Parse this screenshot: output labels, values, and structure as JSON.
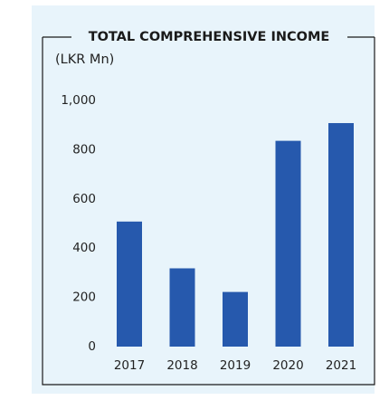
{
  "chart_data": {
    "type": "bar",
    "title": "TOTAL COMPREHENSIVE INCOME",
    "unit_label": "(LKR Mn)",
    "categories": [
      "2017",
      "2018",
      "2019",
      "2020",
      "2021"
    ],
    "values": [
      508,
      318,
      222,
      836,
      908
    ],
    "y_ticks": [
      "0",
      "200",
      "400",
      "600",
      "800",
      "1,000"
    ],
    "ylim": [
      0,
      1000
    ],
    "grid": false,
    "legend": "none",
    "colors": {
      "bar": "#2659ad",
      "panel": "#e8f4fb",
      "frame": "#1a1a1a"
    }
  }
}
